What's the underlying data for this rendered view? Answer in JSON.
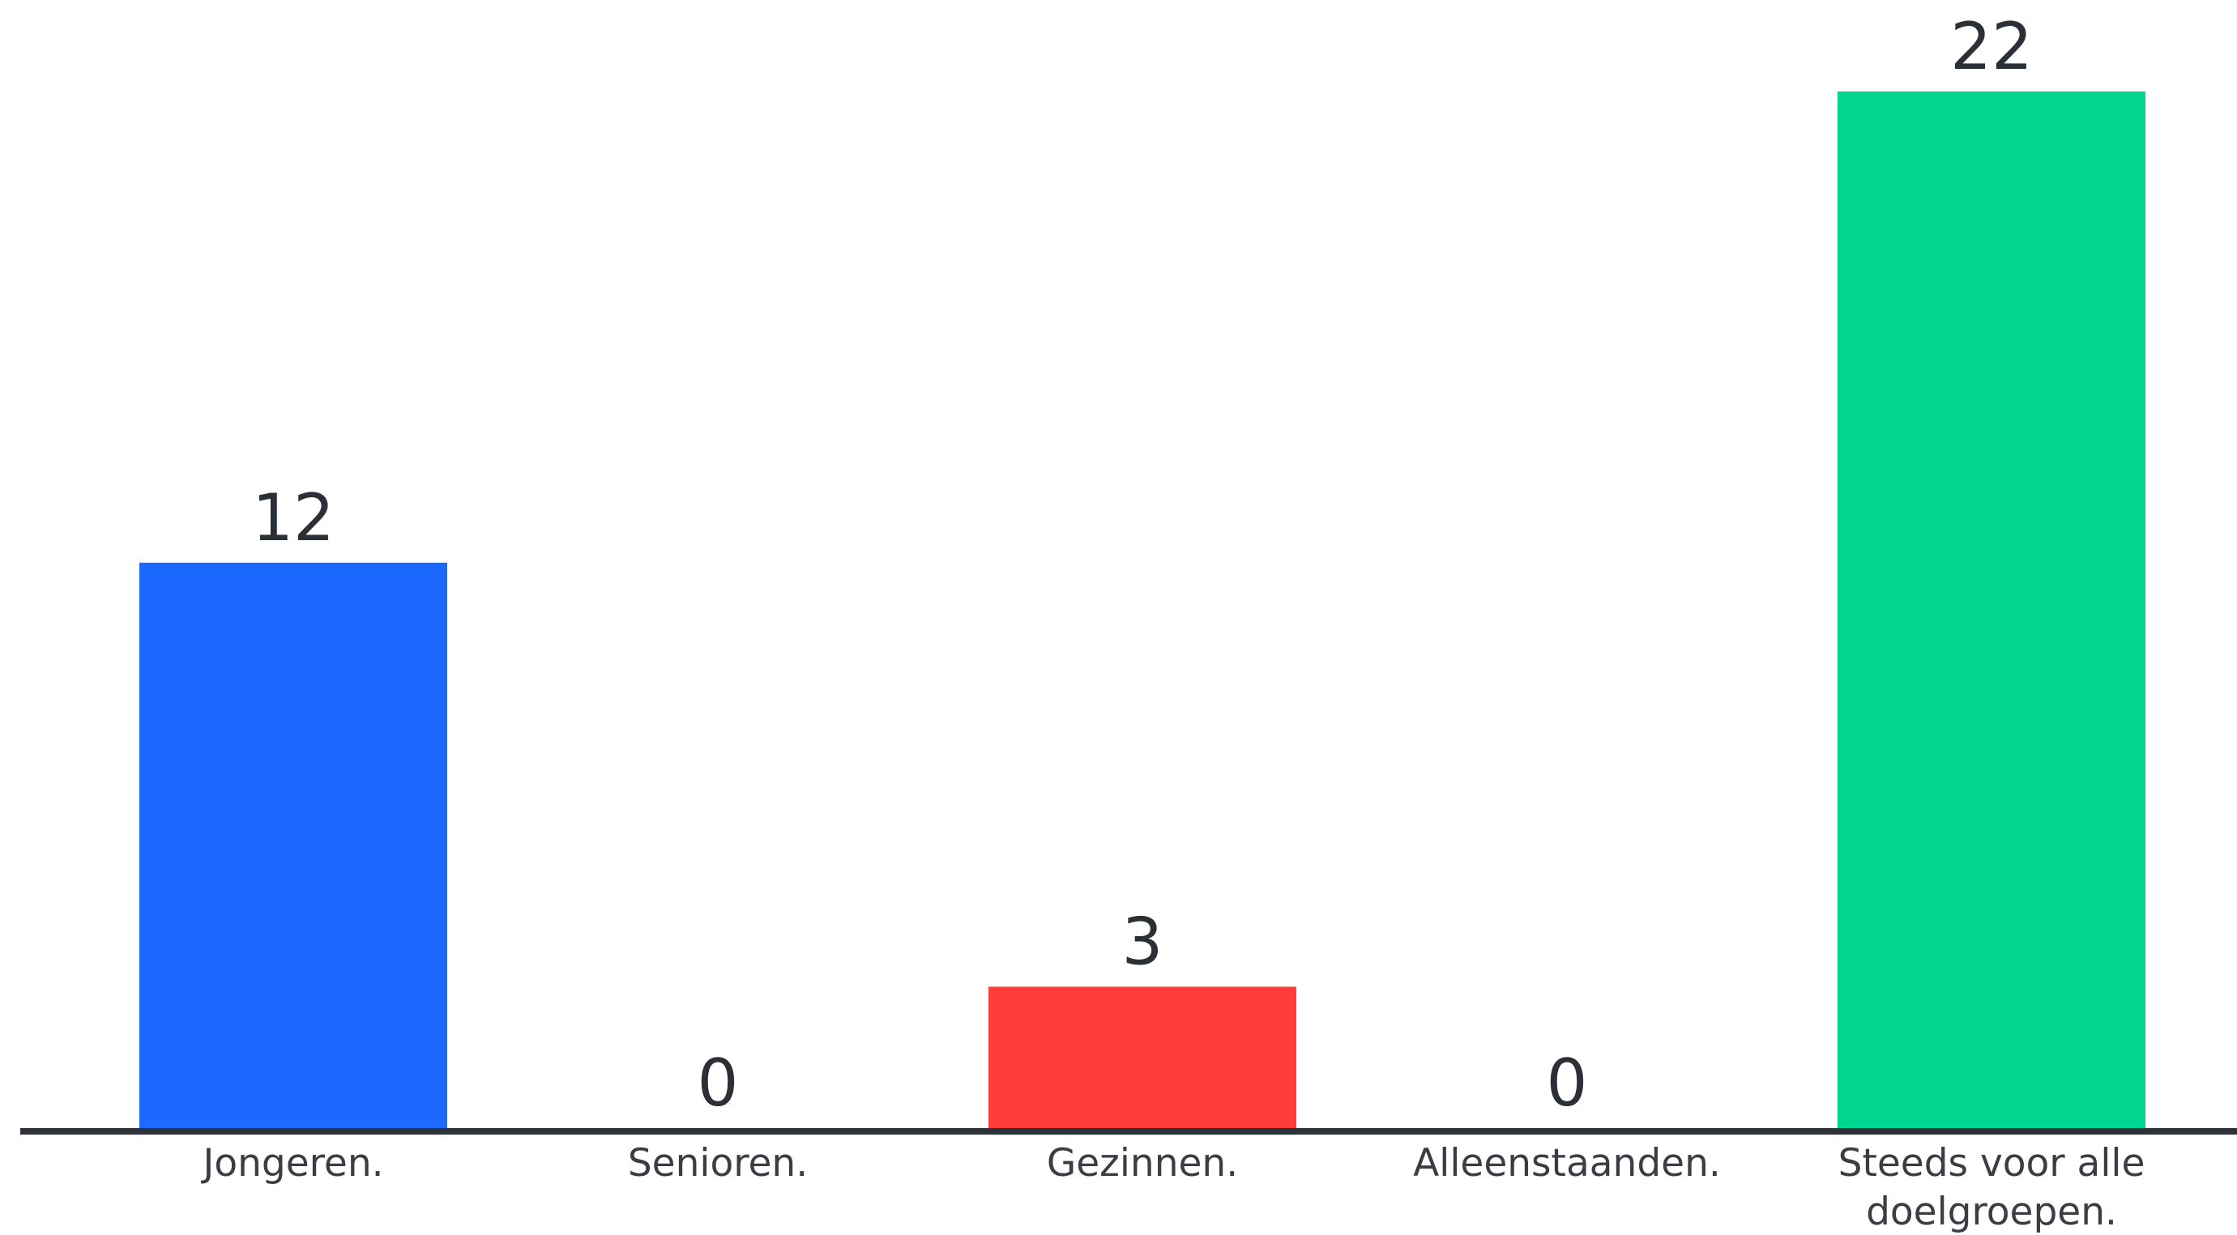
{
  "chart_data": {
    "type": "bar",
    "title": "",
    "xlabel": "",
    "ylabel": "",
    "ylim": [
      0,
      22
    ],
    "grid": false,
    "legend": "none",
    "categories": [
      {
        "lines": [
          "Jongeren."
        ],
        "value": 12,
        "value_label": "12",
        "color": "#1b69ff"
      },
      {
        "lines": [
          "Senioren."
        ],
        "value": 0,
        "value_label": "0",
        "color": "#1b69ff"
      },
      {
        "lines": [
          "Gezinnen."
        ],
        "value": 3,
        "value_label": "3",
        "color": "#ff3e3b"
      },
      {
        "lines": [
          "Alleenstaanden."
        ],
        "value": 0,
        "value_label": "0",
        "color": "#1b69ff"
      },
      {
        "lines": [
          "Steeds voor alle",
          "doelgroepen."
        ],
        "value": 22,
        "value_label": "22",
        "color": "#00d68f"
      }
    ],
    "axis_color": "#2d3139"
  }
}
